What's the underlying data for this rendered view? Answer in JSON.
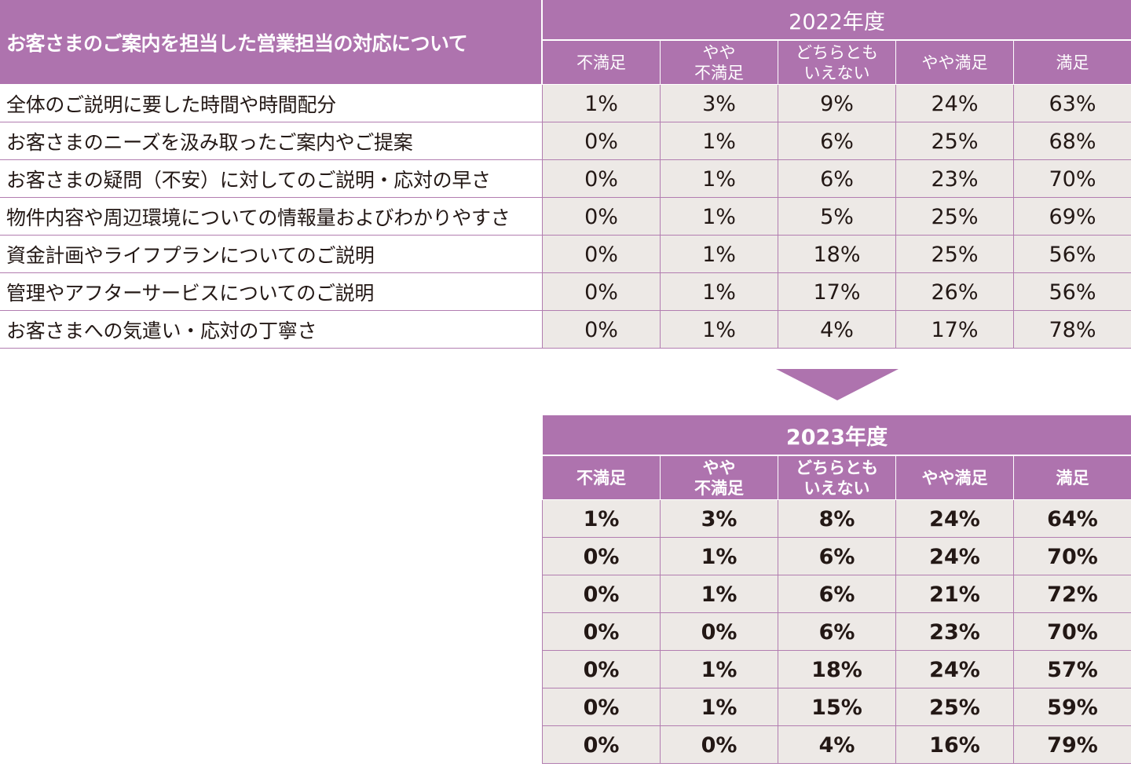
{
  "title": "お客さまのご案内を担当した営業担当の対応について",
  "columns": [
    "不満足",
    "やや\n不満足",
    "どちらとも\nいえない",
    "やや満足",
    "満足"
  ],
  "row_labels": [
    "全体のご説明に要した時間や時間配分",
    "お客さまのニーズを汲み取ったご案内やご提案",
    "お客さまの疑問（不安）に対してのご説明・応対の早さ",
    "物件内容や周辺環境についての情報量およびわかりやすさ",
    "資金計画やライフプランについてのご説明",
    "管理やアフターサービスについてのご説明",
    "お客さまへの気遣い・応対の丁寧さ"
  ],
  "tables": [
    {
      "year": "2022年度",
      "rows": [
        [
          "1%",
          "3%",
          "9%",
          "24%",
          "63%"
        ],
        [
          "0%",
          "1%",
          "6%",
          "25%",
          "68%"
        ],
        [
          "0%",
          "1%",
          "6%",
          "23%",
          "70%"
        ],
        [
          "0%",
          "1%",
          "5%",
          "25%",
          "69%"
        ],
        [
          "0%",
          "1%",
          "18%",
          "25%",
          "56%"
        ],
        [
          "0%",
          "1%",
          "17%",
          "26%",
          "56%"
        ],
        [
          "0%",
          "1%",
          "4%",
          "17%",
          "78%"
        ]
      ]
    },
    {
      "year": "2023年度",
      "rows": [
        [
          "1%",
          "3%",
          "8%",
          "24%",
          "64%"
        ],
        [
          "0%",
          "1%",
          "6%",
          "24%",
          "70%"
        ],
        [
          "0%",
          "1%",
          "6%",
          "21%",
          "72%"
        ],
        [
          "0%",
          "0%",
          "6%",
          "23%",
          "70%"
        ],
        [
          "0%",
          "1%",
          "18%",
          "24%",
          "57%"
        ],
        [
          "0%",
          "1%",
          "15%",
          "25%",
          "59%"
        ],
        [
          "0%",
          "0%",
          "4%",
          "16%",
          "79%"
        ]
      ]
    }
  ],
  "colors": {
    "header": "#ae73ae",
    "cell": "#ede9e6",
    "grid": "#b27db0"
  },
  "chart_data": {
    "type": "table",
    "title": "お客さまのご案内を担当した営業担当の対応について",
    "columns": [
      "不満足",
      "やや不満足",
      "どちらともいえない",
      "やや満足",
      "満足"
    ],
    "categories": [
      "全体のご説明に要した時間や時間配分",
      "お客さまのニーズを汲み取ったご案内やご提案",
      "お客さまの疑問（不安）に対してのご説明・応対の早さ",
      "物件内容や周辺環境についての情報量およびわかりやすさ",
      "資金計画やライフプランについてのご説明",
      "管理やアフターサービスについてのご説明",
      "お客さまへの気遣い・応対の丁寧さ"
    ],
    "series": [
      {
        "name": "2022年度",
        "values": [
          [
            1,
            3,
            9,
            24,
            63
          ],
          [
            0,
            1,
            6,
            25,
            68
          ],
          [
            0,
            1,
            6,
            23,
            70
          ],
          [
            0,
            1,
            5,
            25,
            69
          ],
          [
            0,
            1,
            18,
            25,
            56
          ],
          [
            0,
            1,
            17,
            26,
            56
          ],
          [
            0,
            1,
            4,
            17,
            78
          ]
        ]
      },
      {
        "name": "2023年度",
        "values": [
          [
            1,
            3,
            8,
            24,
            64
          ],
          [
            0,
            1,
            6,
            24,
            70
          ],
          [
            0,
            1,
            6,
            21,
            72
          ],
          [
            0,
            0,
            6,
            23,
            70
          ],
          [
            0,
            1,
            18,
            24,
            57
          ],
          [
            0,
            1,
            15,
            25,
            59
          ],
          [
            0,
            0,
            4,
            16,
            79
          ]
        ]
      }
    ]
  }
}
